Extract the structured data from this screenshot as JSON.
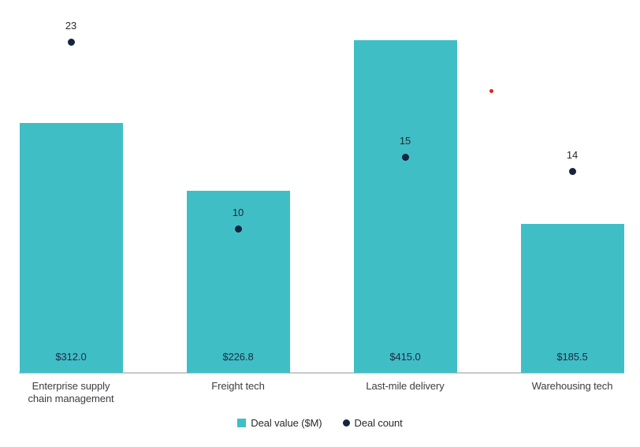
{
  "chart_data": {
    "type": "bar",
    "title": "",
    "categories": [
      "Enterprise supply chain management",
      "Freight tech",
      "Last-mile delivery",
      "Warehousing tech"
    ],
    "series": [
      {
        "name": "Deal value ($M)",
        "type": "bar",
        "values": [
          312.0,
          226.8,
          415.0,
          185.5
        ],
        "color": "#40bec6"
      },
      {
        "name": "Deal count",
        "type": "scatter",
        "values": [
          23,
          10,
          15,
          14
        ],
        "color": "#16243c"
      }
    ],
    "value_labels": [
      "$312.0",
      "$226.8",
      "$415.0",
      "$185.5"
    ],
    "count_labels": [
      "23",
      "10",
      "15",
      "14"
    ],
    "annotations": [
      {
        "type": "point",
        "color": "#e0231f",
        "label": "",
        "position": "between Last-mile delivery and Warehousing tech",
        "approx_count_value": 19.6
      }
    ],
    "grid": "off",
    "value_axis_visible": false,
    "count_axis_visible": false,
    "legend_position": "bottom-center"
  },
  "legend": {
    "items": [
      {
        "label": "Deal value ($M)",
        "marker": "square",
        "color": "#40bec6"
      },
      {
        "label": "Deal count",
        "marker": "dot",
        "color": "#16243c"
      }
    ]
  },
  "colors": {
    "bar": "#40bec6",
    "count_dot": "#16243c",
    "red_dot": "#e0231f",
    "axis_line": "#c9c9c9",
    "background": "#ffffff"
  }
}
